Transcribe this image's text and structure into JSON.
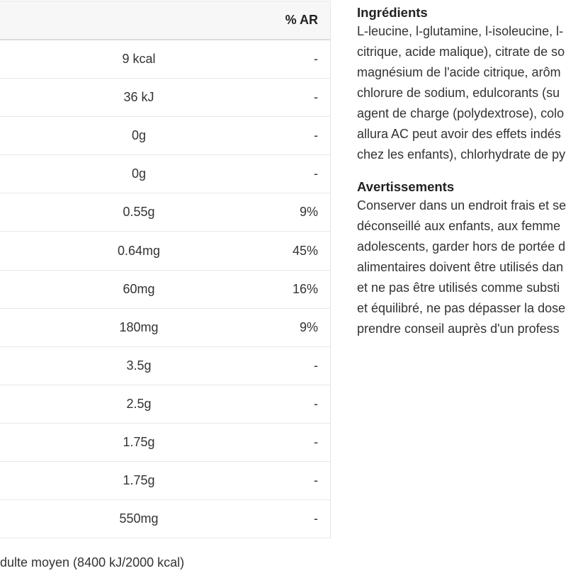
{
  "colors": {
    "header_bg": "#f7f7f7",
    "border": "#e7e7e7",
    "text": "#333333"
  },
  "nutrition_table": {
    "header": {
      "ar_label": "% AR"
    },
    "rows": [
      {
        "value": "9 kcal",
        "ar": "-"
      },
      {
        "value": "36 kJ",
        "ar": "-"
      },
      {
        "value": "0g",
        "ar": "-"
      },
      {
        "value": "0g",
        "ar": "-"
      },
      {
        "value": "0.55g",
        "ar": "9%"
      },
      {
        "value": "0.64mg",
        "ar": "45%"
      },
      {
        "value": "60mg",
        "ar": "16%"
      },
      {
        "value": "180mg",
        "ar": "9%"
      },
      {
        "value": "3.5g",
        "ar": "-"
      },
      {
        "value": "2.5g",
        "ar": "-"
      },
      {
        "value": "1.75g",
        "ar": "-"
      },
      {
        "value": "1.75g",
        "ar": "-"
      },
      {
        "value": "550mg",
        "ar": "-"
      }
    ],
    "footnote": "dulte moyen (8400 kJ/2000 kcal)"
  },
  "ingredients": {
    "heading": "Ingrédients",
    "lines": [
      "L-leucine, l-glutamine, l-isoleucine, l-",
      "citrique, acide malique), citrate de so",
      "magnésium de l'acide citrique, arôm",
      "chlorure de sodium, edulcorants (su",
      "agent de charge (polydextrose), colo",
      "allura AC peut avoir des effets indés",
      "chez les enfants), chlorhydrate de py"
    ]
  },
  "warnings": {
    "heading": "Avertissements",
    "lines": [
      "Conserver dans un endroit frais et se",
      "déconseillé aux enfants, aux femme",
      "adolescents, garder hors de portée d",
      "alimentaires doivent être utilisés dan",
      "et ne pas être utilisés comme substi",
      "et équilibré, ne pas dépasser la dose",
      "prendre conseil auprès d'un profess"
    ]
  }
}
